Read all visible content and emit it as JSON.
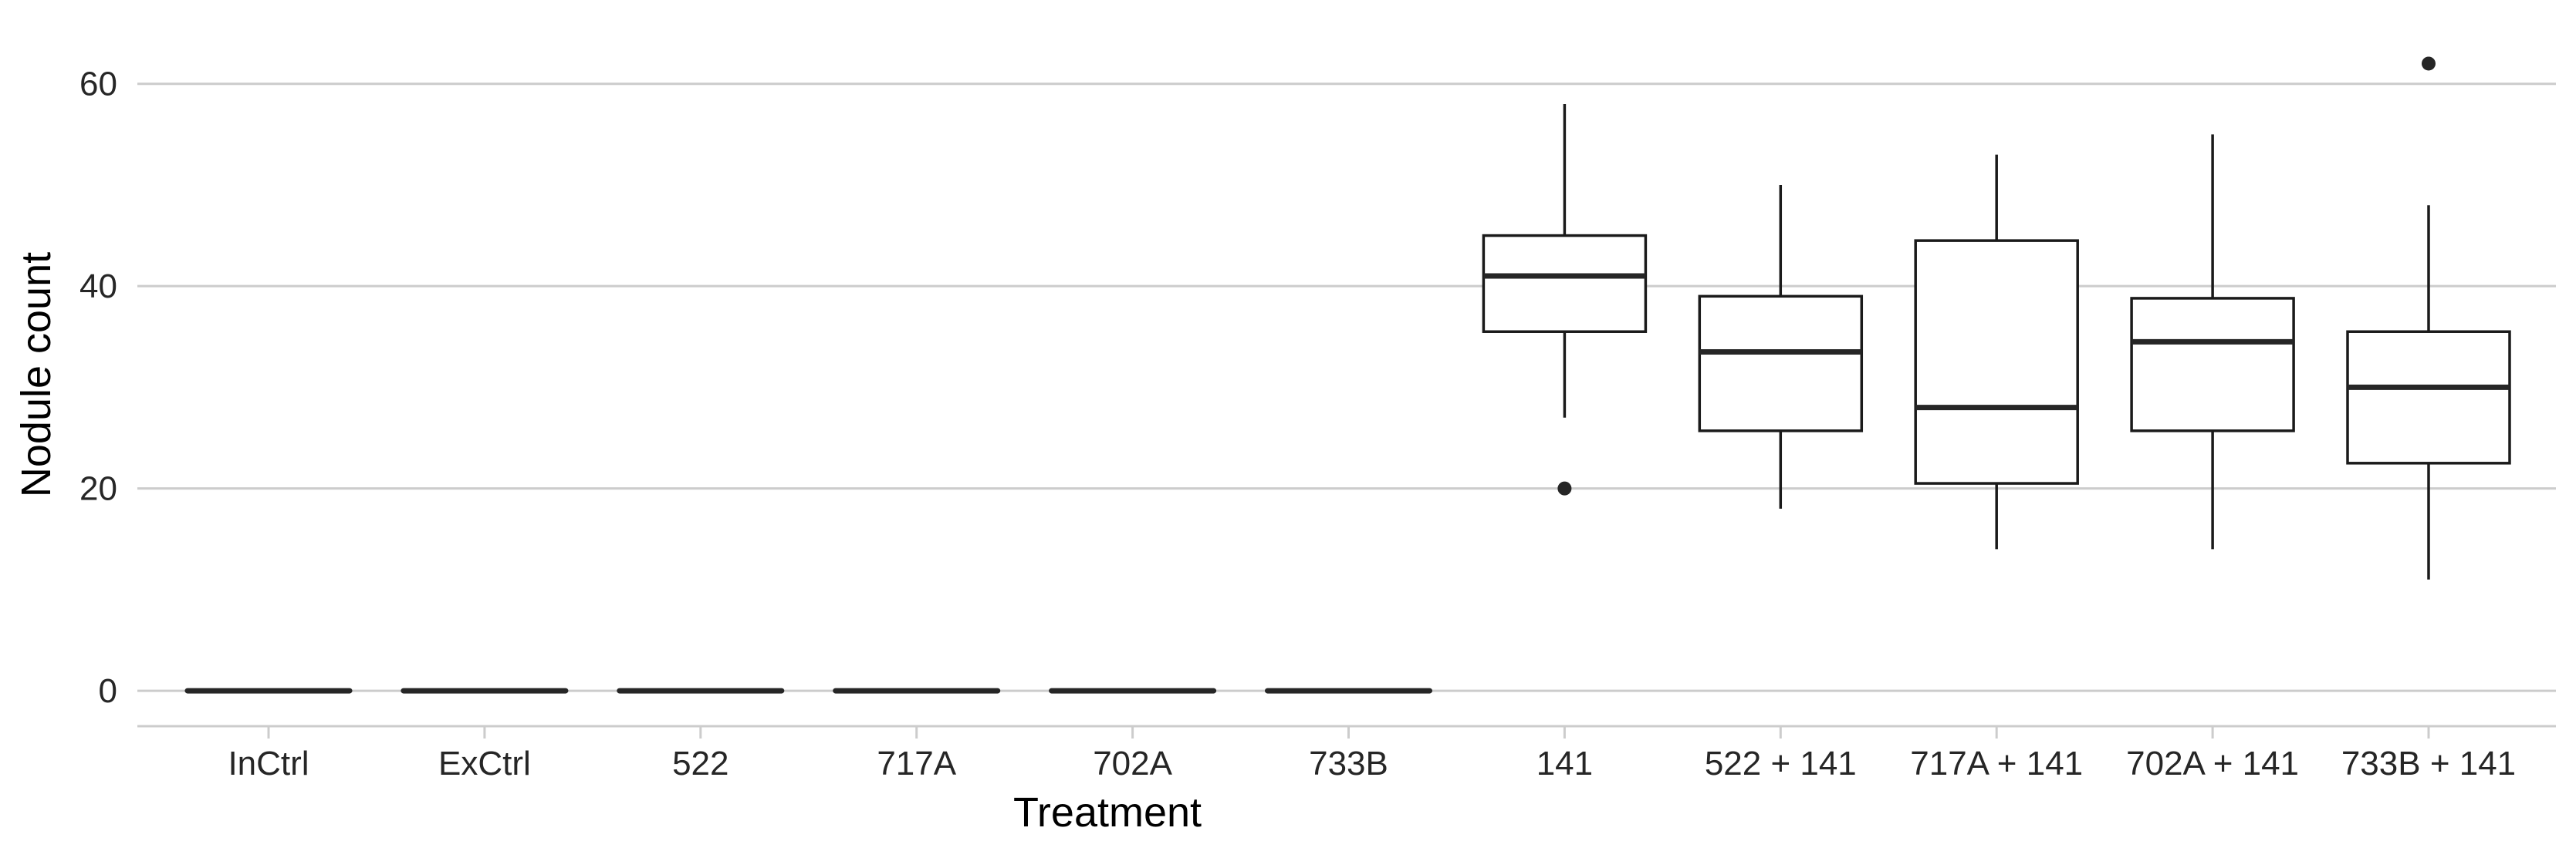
{
  "chart_data": {
    "type": "box",
    "xlabel": "Treatment",
    "ylabel": "Nodule count",
    "ylim": [
      -3.5,
      66
    ],
    "yticks": [
      0,
      20,
      40,
      60
    ],
    "grid": "horizontal",
    "categories": [
      "InCtrl",
      "ExCtrl",
      "522",
      "717A",
      "702A",
      "733B",
      "141",
      "522 + 141",
      "717A + 141",
      "702A + 141",
      "733B + 141"
    ],
    "boxes": [
      {
        "category": "InCtrl",
        "min": 0,
        "q1": 0,
        "median": 0,
        "q3": 0,
        "max": 0,
        "outliers": []
      },
      {
        "category": "ExCtrl",
        "min": 0,
        "q1": 0,
        "median": 0,
        "q3": 0,
        "max": 0,
        "outliers": []
      },
      {
        "category": "522",
        "min": 0,
        "q1": 0,
        "median": 0,
        "q3": 0,
        "max": 0,
        "outliers": []
      },
      {
        "category": "717A",
        "min": 0,
        "q1": 0,
        "median": 0,
        "q3": 0,
        "max": 0,
        "outliers": []
      },
      {
        "category": "702A",
        "min": 0,
        "q1": 0,
        "median": 0,
        "q3": 0,
        "max": 0,
        "outliers": []
      },
      {
        "category": "733B",
        "min": 0,
        "q1": 0,
        "median": 0,
        "q3": 0,
        "max": 0,
        "outliers": []
      },
      {
        "category": "141",
        "min": 27,
        "q1": 35.5,
        "median": 41,
        "q3": 45,
        "max": 58,
        "outliers": [
          20
        ]
      },
      {
        "category": "522 + 141",
        "min": 18,
        "q1": 25.7,
        "median": 33.5,
        "q3": 39,
        "max": 50,
        "outliers": []
      },
      {
        "category": "717A + 141",
        "min": 14,
        "q1": 20.5,
        "median": 28,
        "q3": 44.5,
        "max": 53,
        "outliers": []
      },
      {
        "category": "702A + 141",
        "min": 14,
        "q1": 25.7,
        "median": 34.5,
        "q3": 38.8,
        "max": 55,
        "outliers": []
      },
      {
        "category": "733B + 141",
        "min": 11,
        "q1": 22.5,
        "median": 30,
        "q3": 35.5,
        "max": 48,
        "outliers": [
          62
        ]
      }
    ],
    "colors": {
      "box_fill": "#ffffff",
      "box_stroke": "#1a1a1a",
      "median": "#262626",
      "grid": "#cccccc",
      "axis": "#cccccc",
      "outlier": "#262626"
    }
  }
}
